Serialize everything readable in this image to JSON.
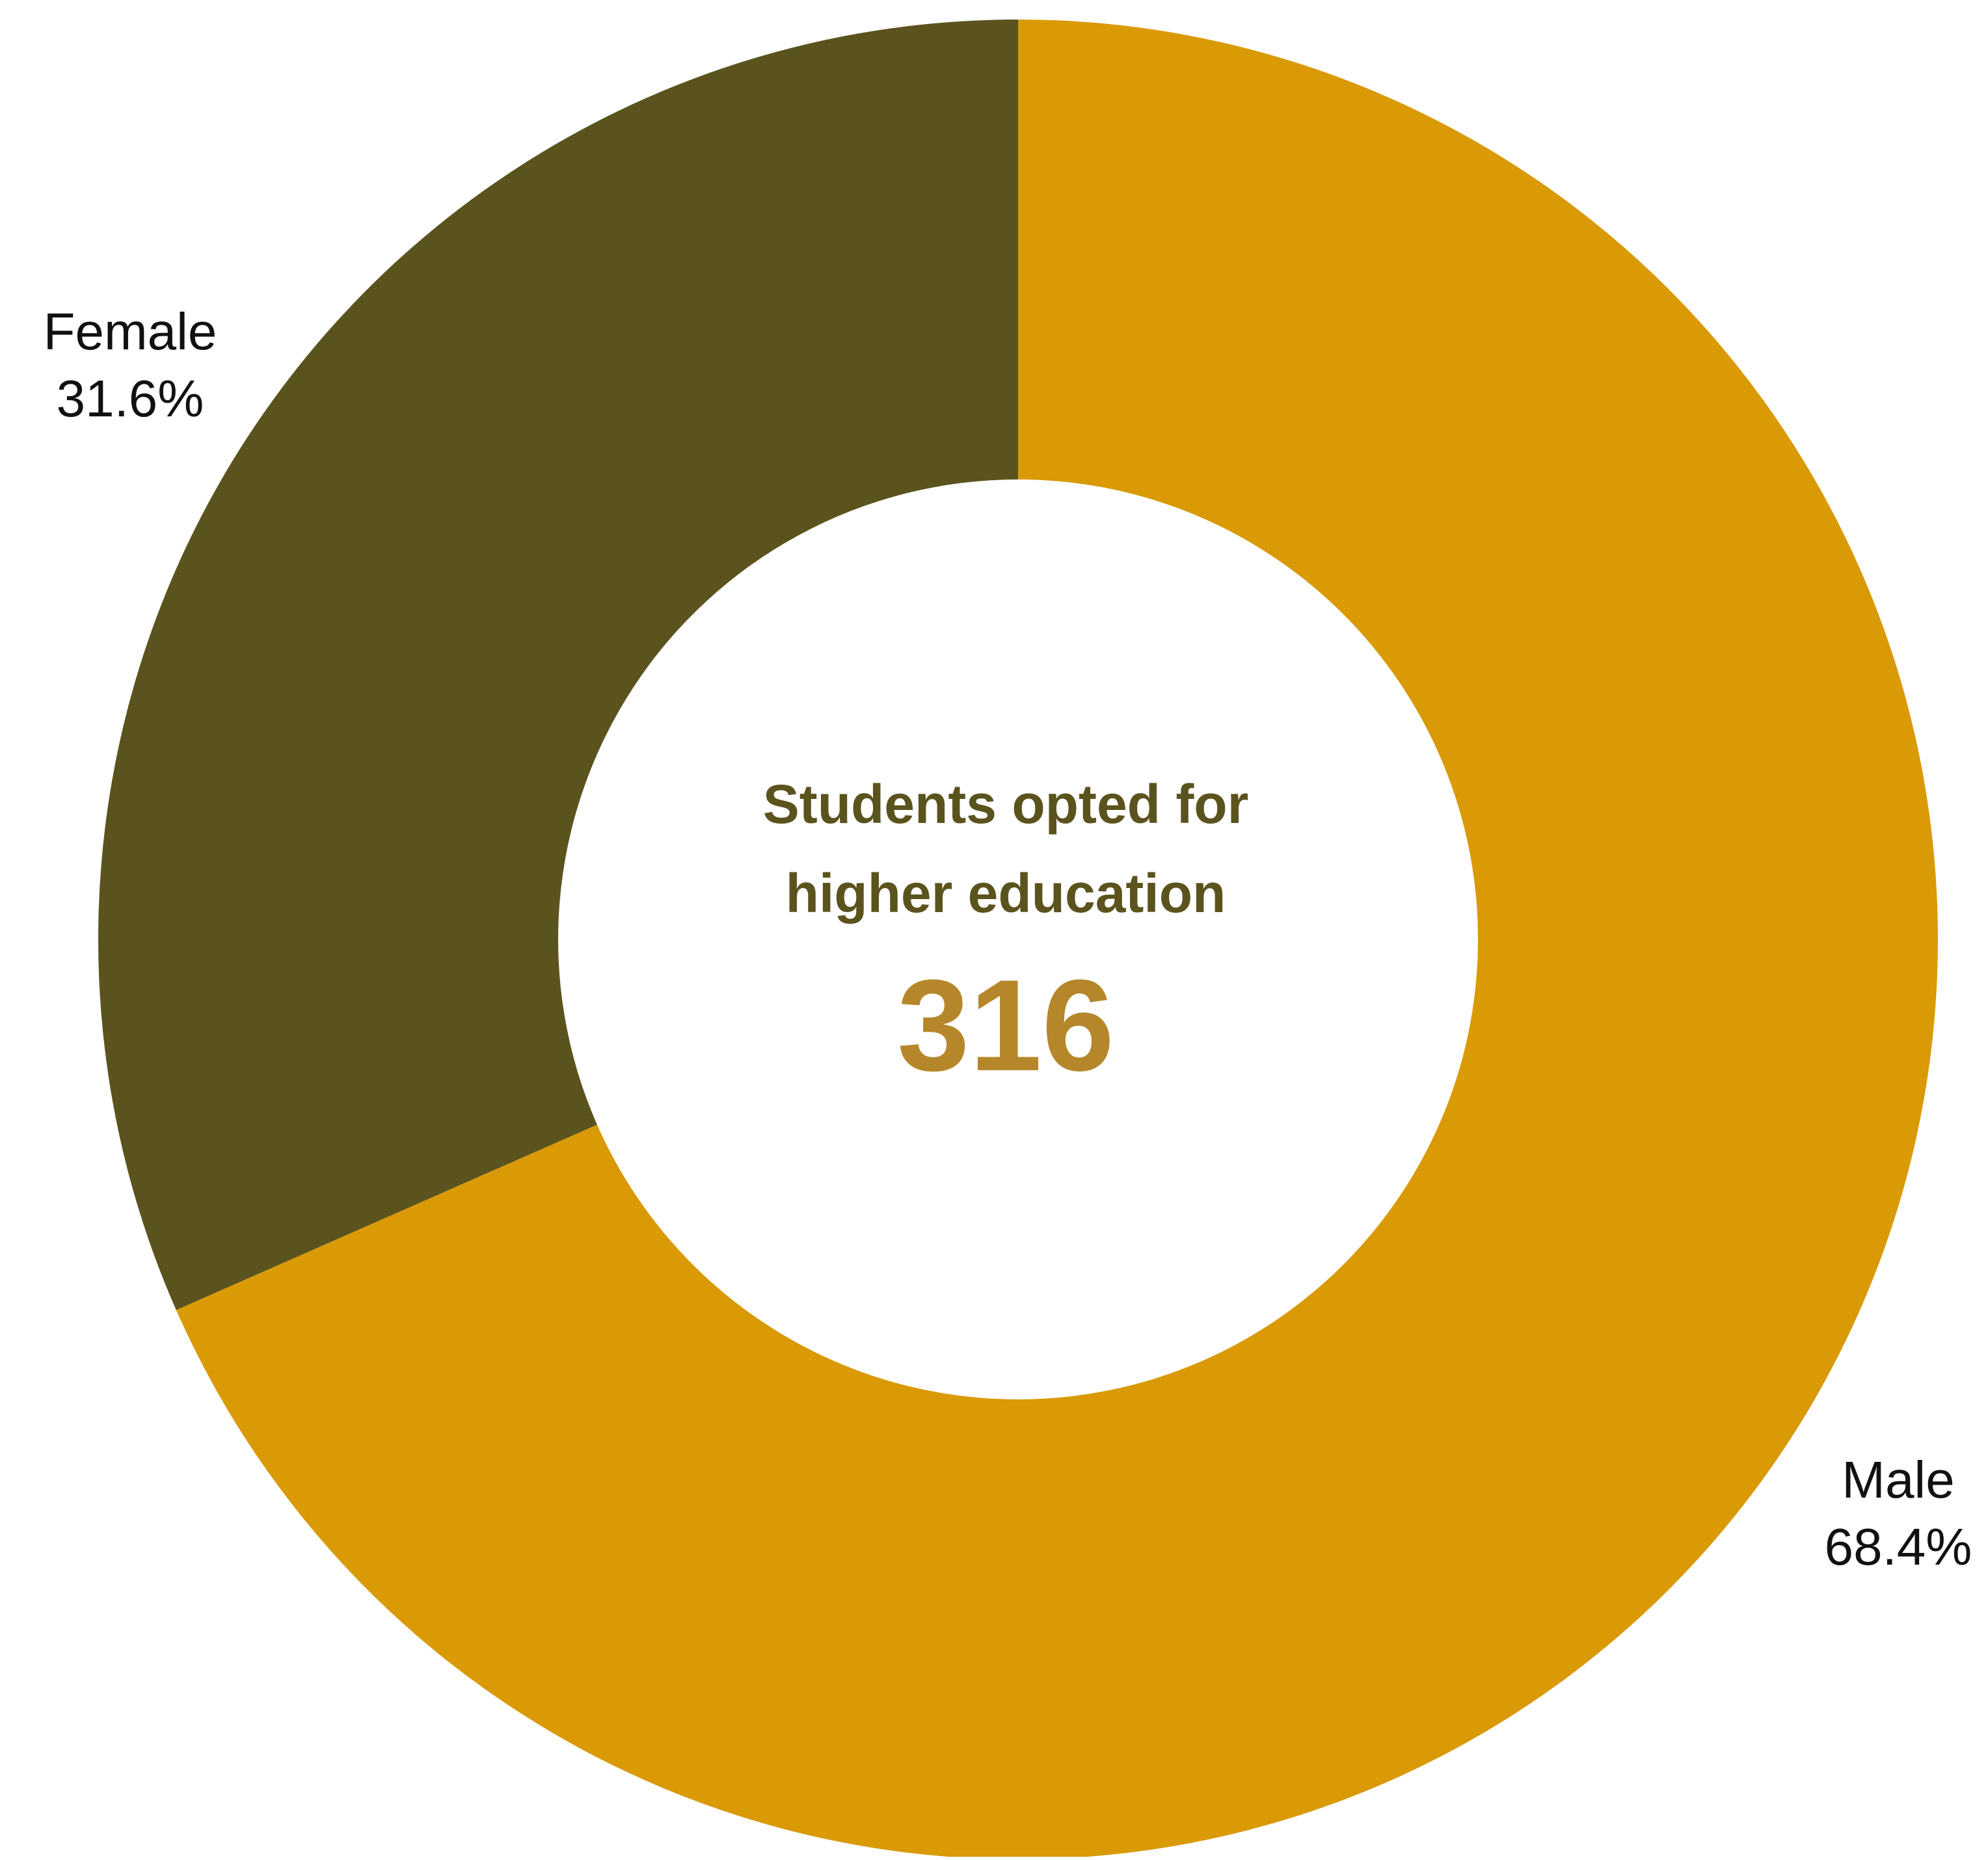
{
  "chart_data": {
    "type": "pie",
    "donut": true,
    "categories": [
      "Female",
      "Male"
    ],
    "values": [
      31.6,
      68.4
    ],
    "value_labels": [
      "31.6%",
      "68.4%"
    ],
    "colors": [
      "#5b531e",
      "#d99a06"
    ],
    "center_title_lines": [
      "Students opted for",
      "higher education"
    ],
    "center_value": "316",
    "center_title_color": "#5b531e",
    "center_value_color": "#b5872a",
    "start_angle": "12 o'clock",
    "direction": "counterclockwise from top for Female, remainder Male"
  }
}
